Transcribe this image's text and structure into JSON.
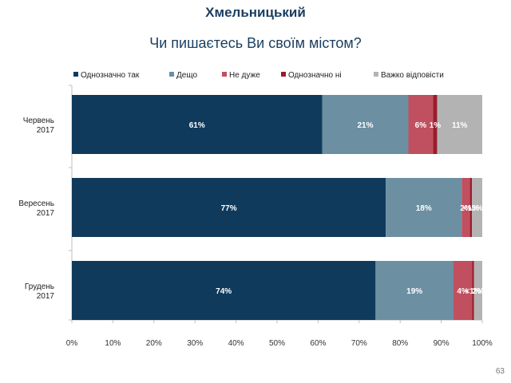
{
  "header": {
    "city": "Хмельницький",
    "question": "Чи пишаєтесь Ви своїм містом?"
  },
  "slide_number": "63",
  "chart_data": {
    "type": "bar",
    "orientation": "horizontal",
    "stacked": true,
    "percent_stacked": true,
    "xlim": [
      0,
      100
    ],
    "xticks": [
      "0%",
      "10%",
      "20%",
      "30%",
      "40%",
      "50%",
      "60%",
      "70%",
      "80%",
      "90%",
      "100%"
    ],
    "legend_position": "top",
    "grid": false,
    "categories": [
      "Червень 2017",
      "Вересень 2017",
      "Грудень 2017"
    ],
    "series": [
      {
        "name": "Однозначно так",
        "color": "#0f3a5c",
        "label_color": "#ffffff",
        "values": [
          61,
          76.5,
          74
        ],
        "labels": [
          "61%",
          "77%",
          "74%"
        ]
      },
      {
        "name": "Дещо",
        "color": "#6c8fa2",
        "label_color": "#ffffff",
        "values": [
          21,
          18.5,
          19
        ],
        "labels": [
          "21%",
          "18%",
          "19%"
        ]
      },
      {
        "name": "Не дуже",
        "color": "#c0505f",
        "label_color": "#ffffff",
        "values": [
          6,
          2,
          4.5
        ],
        "labels": [
          "6%",
          "2%",
          "4%"
        ]
      },
      {
        "name": "Однозначно ні",
        "color": "#9b1c2b",
        "label_color": "#ffffff",
        "values": [
          1,
          0.5,
          0.5
        ],
        "labels": [
          "1%",
          "<1%",
          "<1%"
        ]
      },
      {
        "name": "Важко відповісти",
        "color": "#b3b3b3",
        "label_color": "#ffffff",
        "values": [
          11,
          2.5,
          2
        ],
        "labels": [
          "11%",
          "3%",
          "2%"
        ]
      }
    ]
  }
}
